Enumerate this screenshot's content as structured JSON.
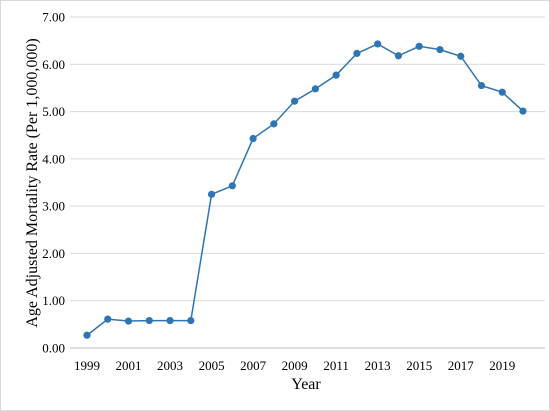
{
  "chart_data": {
    "type": "line",
    "title": "",
    "xlabel": "Year",
    "ylabel": "Age Adjusted Mortality Rate (Per 1,000,000)",
    "ylim": [
      0,
      7
    ],
    "yticks": [
      "0.00",
      "1.00",
      "2.00",
      "3.00",
      "4.00",
      "5.00",
      "6.00",
      "7.00"
    ],
    "xtick_labels": [
      "1999",
      "2001",
      "2003",
      "2005",
      "2007",
      "2009",
      "2011",
      "2013",
      "2015",
      "2017",
      "2019"
    ],
    "grid": "horizontal",
    "legend": "none",
    "series": [
      {
        "color": "#2e75b6",
        "x": [
          1999,
          2000,
          2001,
          2002,
          2003,
          2004,
          2005,
          2006,
          2007,
          2008,
          2009,
          2010,
          2011,
          2012,
          2013,
          2014,
          2015,
          2016,
          2017,
          2018,
          2019,
          2020
        ],
        "y": [
          0.27,
          0.61,
          0.57,
          0.58,
          0.58,
          0.58,
          3.25,
          3.43,
          4.43,
          4.74,
          5.22,
          5.48,
          5.77,
          6.23,
          6.43,
          6.18,
          6.38,
          6.31,
          6.17,
          5.55,
          5.41,
          5.01
        ]
      }
    ]
  }
}
